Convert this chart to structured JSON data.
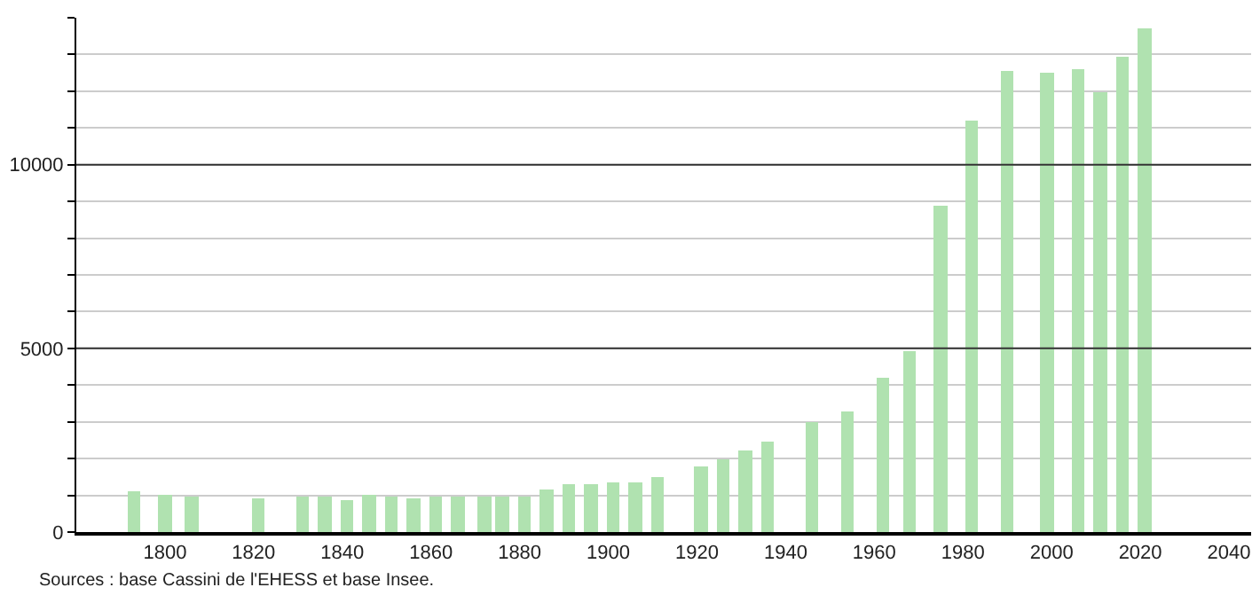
{
  "chart_data": {
    "type": "bar",
    "x": [
      1793,
      1800,
      1806,
      1821,
      1831,
      1836,
      1841,
      1846,
      1851,
      1856,
      1861,
      1866,
      1872,
      1876,
      1881,
      1886,
      1891,
      1896,
      1901,
      1906,
      1911,
      1921,
      1926,
      1931,
      1936,
      1946,
      1954,
      1962,
      1968,
      1975,
      1982,
      1990,
      1999,
      2006,
      2011,
      2016,
      2021
    ],
    "values": [
      1090,
      1020,
      980,
      910,
      980,
      980,
      860,
      990,
      980,
      910,
      980,
      980,
      980,
      980,
      980,
      1140,
      1300,
      1300,
      1350,
      1350,
      1480,
      1770,
      1980,
      2240,
      2440,
      3010,
      3280,
      4210,
      4930,
      8900,
      11180,
      12530,
      12480,
      12600,
      11980,
      12940,
      13710
    ],
    "color": "#b0e2b0",
    "xlim": [
      1780,
      2045
    ],
    "xticks": [
      1800,
      1820,
      1840,
      1860,
      1880,
      1900,
      1920,
      1940,
      1960,
      1980,
      2000,
      2020,
      2040
    ],
    "ylim": [
      0,
      14000
    ],
    "yticks": [
      0,
      {
        "value": 1000,
        "label": null
      },
      {
        "value": 2000,
        "label": null
      },
      {
        "value": 3000,
        "label": null
      },
      {
        "value": 4000,
        "label": null
      },
      5000,
      {
        "value": 6000,
        "label": null
      },
      {
        "value": 7000,
        "label": null
      },
      {
        "value": 8000,
        "label": null
      },
      {
        "value": 9000,
        "label": null
      },
      10000,
      {
        "value": 11000,
        "label": null
      },
      {
        "value": 12000,
        "label": null
      },
      {
        "value": 13000,
        "label": null
      },
      {
        "value": 14000,
        "label": null
      }
    ],
    "grid": "y",
    "annotations": [
      "Sources : base Cassini de l'EHESS et base Insee."
    ]
  }
}
